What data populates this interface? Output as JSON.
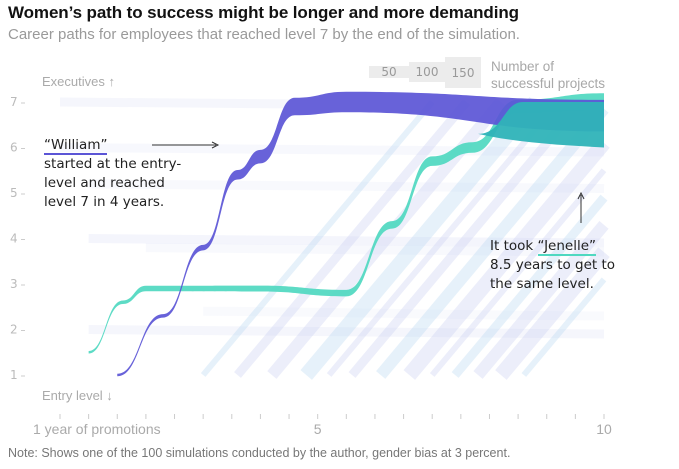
{
  "header": {
    "title": "Women’s path to success might be longer and more demanding",
    "subtitle": "Career paths for employees that reached level 7 by the end of the simulation."
  },
  "legend": {
    "sizes": [
      "50",
      "100",
      "150"
    ],
    "label_line1": "Number of",
    "label_line2": "successful projects"
  },
  "annotations": {
    "william_name": "“William”",
    "william_text": [
      "started at the entry-",
      "level and reached",
      "level 7 in 4 years."
    ],
    "jenelle_prefix": "It took ",
    "jenelle_name": "“Jenelle”",
    "jenelle_text": [
      "8.5 years to get to",
      "the same level."
    ]
  },
  "note": "Note: Shows one of the 100 simulations conducted by the author, gender bias at 3 percent.",
  "colors": {
    "william": "#5b55d6",
    "jenelle": "#4fd8c0",
    "top_blend": "#2fb3b8",
    "background_paths": "#c9cdf0"
  },
  "chart_data": {
    "type": "line",
    "title": "Women’s path to success might be longer and more demanding",
    "subtitle": "Career paths for employees that reached level 7 by the end of the simulation.",
    "xlabel": "1 year of promotions",
    "ylabel_top": "Executives ↑",
    "ylabel_bottom": "Entry level ↓",
    "x_range": [
      0.5,
      10
    ],
    "y_range": [
      1,
      7
    ],
    "x_ticks": [
      0.5,
      1,
      1.5,
      2,
      2.5,
      3,
      3.5,
      4,
      4.5,
      5,
      5.5,
      6,
      6.5,
      7,
      7.5,
      8,
      8.5,
      9,
      9.5,
      10
    ],
    "x_tick_labels": {
      "0.5": "1 year of promotions",
      "5": "5",
      "10": "10"
    },
    "y_ticks": [
      1,
      2,
      3,
      4,
      5,
      6,
      7
    ],
    "y_tick_labels": [
      "1",
      "2",
      "3",
      "4",
      "5",
      "6",
      "7"
    ],
    "legend": "top-right",
    "series": [
      {
        "name": "William",
        "color": "#5b55d6",
        "points": [
          [
            1.5,
            1
          ],
          [
            2.3,
            2.3
          ],
          [
            3.0,
            3.8
          ],
          [
            3.6,
            5.4
          ],
          [
            4.0,
            5.8
          ],
          [
            4.6,
            6.9
          ],
          [
            5.5,
            7
          ],
          [
            10,
            6.7
          ]
        ],
        "width_projects": [
          5,
          10,
          20,
          40,
          60,
          80,
          95,
          150
        ]
      },
      {
        "name": "Jenelle",
        "color": "#4fd8c0",
        "points": [
          [
            1.0,
            1.5
          ],
          [
            1.6,
            2.6
          ],
          [
            2.0,
            2.9
          ],
          [
            4.0,
            2.9
          ],
          [
            5.5,
            2.8
          ],
          [
            6.3,
            4.3
          ],
          [
            7.0,
            5.7
          ],
          [
            7.7,
            6.0
          ],
          [
            8.5,
            6.9
          ],
          [
            10,
            7
          ]
        ],
        "width_projects": [
          5,
          10,
          20,
          22,
          25,
          30,
          40,
          45,
          60,
          80
        ]
      }
    ],
    "background_paths_note": "Faint paths for other employees reaching level 7"
  }
}
